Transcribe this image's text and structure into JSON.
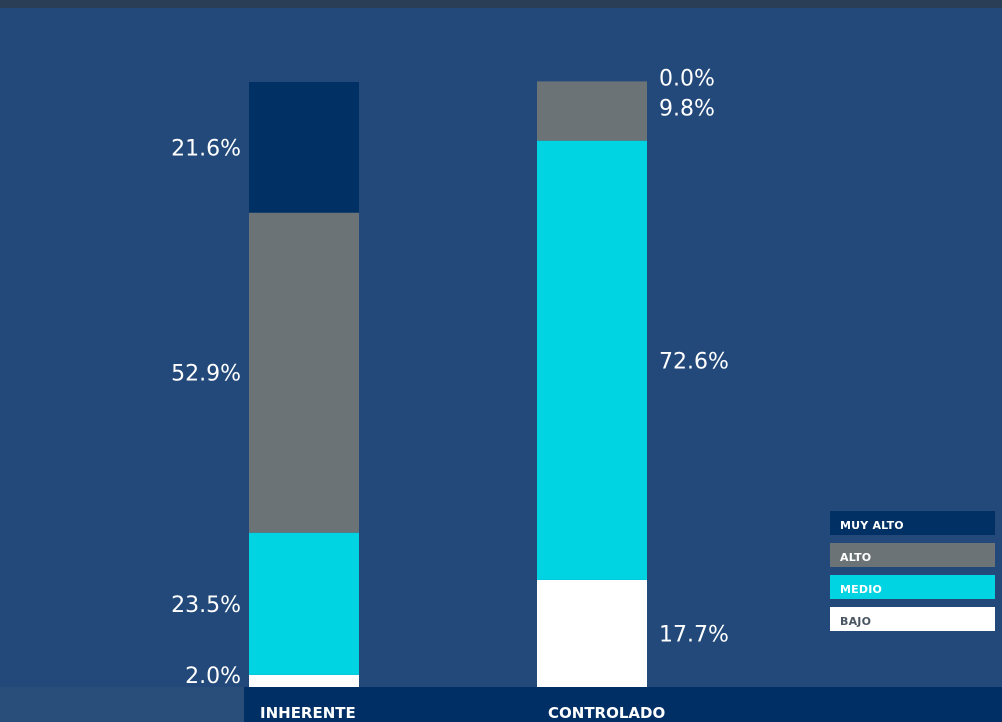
{
  "chart_data": {
    "type": "bar",
    "stacked": true,
    "categories": [
      "INHERENTE",
      "CONTROLADO"
    ],
    "series": [
      {
        "name": "BAJO",
        "color": "#ffffff",
        "label_color": "#4a5562",
        "values": [
          2.0,
          17.7
        ]
      },
      {
        "name": "MEDIO",
        "color": "#00d3e2",
        "label_color": "#ffffff",
        "values": [
          23.5,
          72.6
        ]
      },
      {
        "name": "ALTO",
        "color": "#6b7376",
        "label_color": "#ffffff",
        "values": [
          52.9,
          9.8
        ]
      },
      {
        "name": "MUY ALTO",
        "color": "#003064",
        "label_color": "#ffffff",
        "values": [
          21.6,
          0.0
        ]
      }
    ],
    "value_labels": [
      [
        "2.0%",
        "23.5%",
        "52.9%",
        "21.6%"
      ],
      [
        "17.7%",
        "72.6%",
        "9.8%",
        "0.0%"
      ]
    ],
    "legend_order": [
      "MUY ALTO",
      "ALTO",
      "MEDIO",
      "BAJO"
    ],
    "legend_position": "bottom-right",
    "title": "",
    "xlabel": "",
    "ylabel": "",
    "ylim": [
      0,
      100
    ],
    "grid": false
  },
  "colors": {
    "background": "#22497a",
    "category_band": "#002f66",
    "category_band_left": "#2a4e7a"
  }
}
